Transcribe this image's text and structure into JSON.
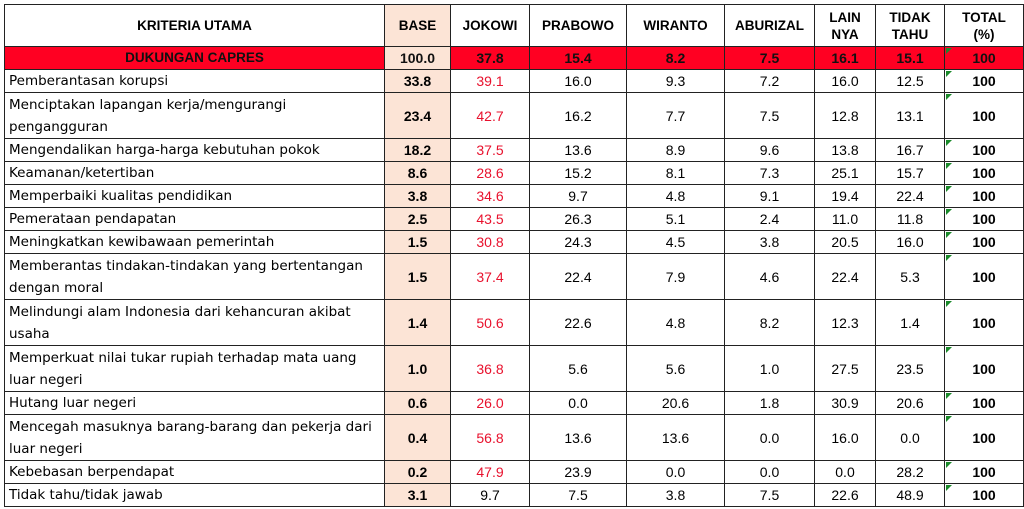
{
  "headers": [
    "KRITERIA UTAMA",
    "BASE",
    "JOKOWI",
    "PRABOWO",
    "WIRANTO",
    "ABURIZAL",
    "LAIN NYA",
    "TIDAK TAHU",
    "TOTAL (%)"
  ],
  "header_lines": {
    "lain": [
      "LAIN",
      "NYA"
    ],
    "tidak": [
      "TIDAK",
      "TAHU"
    ],
    "total": [
      "TOTAL",
      "(%)"
    ]
  },
  "summary_row": {
    "label": "DUKUNGAN CAPRES",
    "values": [
      "100.0",
      "37.8",
      "15.4",
      "8.2",
      "7.5",
      "16.1",
      "15.1",
      "100"
    ]
  },
  "rows": [
    {
      "label": "Pemberantasan korupsi",
      "values": [
        "33.8",
        "39.1",
        "16.0",
        "9.3",
        "7.2",
        "16.0",
        "12.5",
        "100"
      ],
      "jokowi_red": true
    },
    {
      "label": "Menciptakan lapangan kerja/mengurangi pengangguran",
      "values": [
        "23.4",
        "42.7",
        "16.2",
        "7.7",
        "7.5",
        "12.8",
        "13.1",
        "100"
      ],
      "jokowi_red": true
    },
    {
      "label": "Mengendalikan harga-harga kebutuhan pokok",
      "values": [
        "18.2",
        "37.5",
        "13.6",
        "8.9",
        "9.6",
        "13.8",
        "16.7",
        "100"
      ],
      "jokowi_red": true
    },
    {
      "label": "Keamanan/ketertiban",
      "values": [
        "8.6",
        "28.6",
        "15.2",
        "8.1",
        "7.3",
        "25.1",
        "15.7",
        "100"
      ],
      "jokowi_red": true
    },
    {
      "label": "Memperbaiki kualitas pendidikan",
      "values": [
        "3.8",
        "34.6",
        "9.7",
        "4.8",
        "9.1",
        "19.4",
        "22.4",
        "100"
      ],
      "jokowi_red": true
    },
    {
      "label": "Pemerataan pendapatan",
      "values": [
        "2.5",
        "43.5",
        "26.3",
        "5.1",
        "2.4",
        "11.0",
        "11.8",
        "100"
      ],
      "jokowi_red": true
    },
    {
      "label": "Meningkatkan kewibawaan pemerintah",
      "values": [
        "1.5",
        "30.8",
        "24.3",
        "4.5",
        "3.8",
        "20.5",
        "16.0",
        "100"
      ],
      "jokowi_red": true
    },
    {
      "label": "Memberantas tindakan-tindakan yang bertentangan dengan moral",
      "values": [
        "1.5",
        "37.4",
        "22.4",
        "7.9",
        "4.6",
        "22.4",
        "5.3",
        "100"
      ],
      "jokowi_red": true
    },
    {
      "label": "Melindungi alam Indonesia dari kehancuran akibat usaha",
      "values": [
        "1.4",
        "50.6",
        "22.6",
        "4.8",
        "8.2",
        "12.3",
        "1.4",
        "100"
      ],
      "jokowi_red": true
    },
    {
      "label": "Memperkuat nilai tukar rupiah terhadap mata uang luar negeri",
      "values": [
        "1.0",
        "36.8",
        "5.6",
        "5.6",
        "1.0",
        "27.5",
        "23.5",
        "100"
      ],
      "jokowi_red": true
    },
    {
      "label": "Hutang luar negeri",
      "values": [
        "0.6",
        "26.0",
        "0.0",
        "20.6",
        "1.8",
        "30.9",
        "20.6",
        "100"
      ],
      "jokowi_red": true
    },
    {
      "label": "Mencegah masuknya barang-barang dan pekerja dari luar negeri",
      "values": [
        "0.4",
        "56.8",
        "13.6",
        "13.6",
        "0.0",
        "16.0",
        "0.0",
        "100"
      ],
      "jokowi_red": true
    },
    {
      "label": "Kebebasan berpendapat",
      "values": [
        "0.2",
        "47.9",
        "23.9",
        "0.0",
        "0.0",
        "0.0",
        "28.2",
        "100"
      ],
      "jokowi_red": true
    },
    {
      "label": "Tidak tahu/tidak jawab",
      "values": [
        "3.1",
        "9.7",
        "7.5",
        "3.8",
        "7.5",
        "22.6",
        "48.9",
        "100"
      ],
      "jokowi_red": false
    }
  ],
  "colors": {
    "highlight_row": "#ff0022",
    "base_column": "#fce4d6",
    "jokowi_text": "#e8112d",
    "comment_marker": "#1a8a2a"
  }
}
